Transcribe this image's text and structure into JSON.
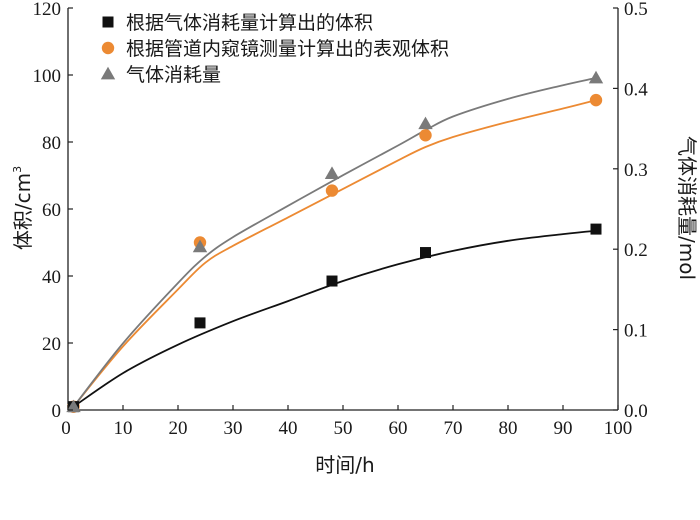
{
  "chart_data": {
    "type": "scatter",
    "title": "",
    "xlabel": "时间/h",
    "ylabel_left": "体积/cm",
    "ylabel_left_sup": "3",
    "ylabel_right": "气体消耗量/mol",
    "xlim": [
      0,
      100
    ],
    "ylim_left": [
      0,
      120
    ],
    "ylim_right": [
      0,
      0.5
    ],
    "xticks": [
      "0",
      "10",
      "20",
      "30",
      "40",
      "50",
      "60",
      "70",
      "80",
      "90",
      "100"
    ],
    "yticks_left": [
      "0",
      "20",
      "40",
      "60",
      "80",
      "100",
      "120"
    ],
    "yticks_right": [
      "0.0",
      "0.1",
      "0.2",
      "0.3",
      "0.4",
      "0.5"
    ],
    "grid": false,
    "legend_position": "top-left",
    "series": [
      {
        "name": "根据气体消耗量计算出的体积",
        "axis": "left",
        "marker": "square",
        "color": "#111111",
        "points": [
          [
            1,
            1
          ],
          [
            24,
            26
          ],
          [
            48,
            38.5
          ],
          [
            65,
            47
          ],
          [
            96,
            54
          ]
        ],
        "fit": [
          [
            1,
            1
          ],
          [
            10,
            11
          ],
          [
            20,
            19.5
          ],
          [
            30,
            26.5
          ],
          [
            40,
            32.5
          ],
          [
            50,
            38.5
          ],
          [
            60,
            43.5
          ],
          [
            70,
            47.5
          ],
          [
            80,
            50.5
          ],
          [
            90,
            52.5
          ],
          [
            96,
            53.5
          ]
        ]
      },
      {
        "name": "根据管道内窥镜测量计算出的表观体积",
        "axis": "left",
        "marker": "circle",
        "color": "#ec8a33",
        "points": [
          [
            1,
            1
          ],
          [
            24,
            50
          ],
          [
            48,
            65.5
          ],
          [
            65,
            82
          ],
          [
            96,
            92.5
          ]
        ],
        "fit": [
          [
            1,
            1
          ],
          [
            10,
            19
          ],
          [
            20,
            36
          ],
          [
            25,
            44
          ],
          [
            30,
            49
          ],
          [
            40,
            57.5
          ],
          [
            50,
            66
          ],
          [
            60,
            74.5
          ],
          [
            65,
            78.5
          ],
          [
            70,
            81.5
          ],
          [
            80,
            86
          ],
          [
            90,
            90
          ],
          [
            96,
            92.5
          ]
        ]
      },
      {
        "name": "气体消耗量",
        "axis": "right",
        "marker": "triangle",
        "color": "#7a7a7a",
        "points": [
          [
            1,
            0.004
          ],
          [
            24,
            0.203
          ],
          [
            48,
            0.294
          ],
          [
            65,
            0.356
          ],
          [
            96,
            0.413
          ]
        ],
        "fit": [
          [
            1,
            0.004
          ],
          [
            10,
            0.083
          ],
          [
            20,
            0.158
          ],
          [
            25,
            0.191
          ],
          [
            30,
            0.215
          ],
          [
            40,
            0.254
          ],
          [
            50,
            0.292
          ],
          [
            60,
            0.329
          ],
          [
            65,
            0.348
          ],
          [
            70,
            0.365
          ],
          [
            80,
            0.387
          ],
          [
            90,
            0.404
          ],
          [
            96,
            0.413
          ]
        ]
      }
    ]
  }
}
